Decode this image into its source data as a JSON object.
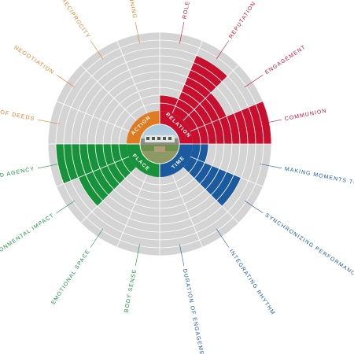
{
  "chart_data": {
    "type": "radial-bar",
    "max_level": 10,
    "grid": true,
    "quadrants": [
      {
        "name": "RELATION",
        "color": "#c8102e"
      },
      {
        "name": "TIME",
        "color": "#1c5aa0"
      },
      {
        "name": "PLACE",
        "color": "#17913a"
      },
      {
        "name": "ACTION",
        "color": "#e07b22"
      }
    ],
    "dimensions": [
      {
        "label": "ROLE",
        "quadrant": "RELATION",
        "value": 2
      },
      {
        "label": "REPUTATION",
        "quadrant": "RELATION",
        "value": 8
      },
      {
        "label": "ENGAGEMENT",
        "quadrant": "RELATION",
        "value": 5
      },
      {
        "label": "COMMUNION",
        "quadrant": "RELATION",
        "value": 10
      },
      {
        "label": "MAKING MOMENTS TO SIG",
        "quadrant": "TIME",
        "value": 2
      },
      {
        "label": "SYNCHRONIZING PERFORMANCE",
        "quadrant": "TIME",
        "value": 7
      },
      {
        "label": "INTEGRATING RHYTHM",
        "quadrant": "TIME",
        "value": 0
      },
      {
        "label": "DURATION OF ENGAGEMENT",
        "quadrant": "TIME",
        "value": 0
      },
      {
        "label": "BODY SENSE",
        "quadrant": "PLACE",
        "value": 0
      },
      {
        "label": "EMOTIONAL SPACE",
        "quadrant": "PLACE",
        "value": 0
      },
      {
        "label": "ENVIRONMENTAL IMPACT",
        "quadrant": "PLACE",
        "value": 7
      },
      {
        "label": "UATED AGENCY",
        "quadrant": "PLACE",
        "value": 9
      },
      {
        "label": "LITY OF DEEDS",
        "quadrant": "ACTION",
        "value": 0
      },
      {
        "label": "NEGOTIATION",
        "quadrant": "ACTION",
        "value": 0
      },
      {
        "label": "RECIPROCITY",
        "quadrant": "ACTION",
        "value": 0
      },
      {
        "label": "TUNING",
        "quadrant": "ACTION",
        "value": 0
      }
    ]
  }
}
